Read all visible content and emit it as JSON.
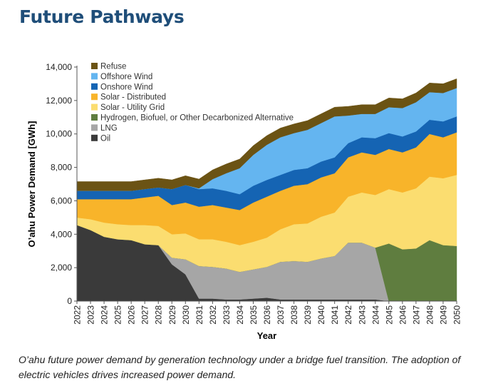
{
  "title": "Future Pathways",
  "caption": "O’ahu future power demand by generation technology under a bridge fuel transition. The adoption of electric vehicles drives increased power demand.",
  "chart_data": {
    "type": "area",
    "stacked": true,
    "xlabel": "Year",
    "ylabel": "O’ahu Power Demand [GWh]",
    "ylim": [
      0,
      14000
    ],
    "yticks": [
      0,
      2000,
      4000,
      6000,
      8000,
      10000,
      12000,
      14000
    ],
    "ytick_labels": [
      "0",
      "2,000",
      "4,000",
      "6,000",
      "8,000",
      "10,000",
      "12,000",
      "14,000"
    ],
    "grid": false,
    "legend_position": "top-left",
    "categories": [
      "2022",
      "2023",
      "2024",
      "2025",
      "2026",
      "2027",
      "2028",
      "2029",
      "2030",
      "2031",
      "2032",
      "2033",
      "2034",
      "2035",
      "2036",
      "2037",
      "2038",
      "2039",
      "2040",
      "2041",
      "2042",
      "2043",
      "2044",
      "2045",
      "2046",
      "2047",
      "2048",
      "2049",
      "2050"
    ],
    "series": [
      {
        "name": "Oil",
        "color": "#3a3a3a",
        "values": [
          4550,
          4250,
          3850,
          3700,
          3650,
          3400,
          3350,
          2200,
          1600,
          150,
          150,
          100,
          100,
          150,
          200,
          100,
          100,
          100,
          100,
          100,
          100,
          100,
          100,
          0,
          0,
          0,
          0,
          0,
          0
        ]
      },
      {
        "name": "LNG",
        "color": "#a6a6a6",
        "values": [
          0,
          0,
          0,
          0,
          0,
          0,
          0,
          400,
          900,
          1950,
          1900,
          1850,
          1650,
          1750,
          1850,
          2250,
          2300,
          2250,
          2450,
          2600,
          3400,
          3400,
          3100,
          0,
          0,
          0,
          0,
          0,
          0
        ]
      },
      {
        "name": "Hydrogen, Biofuel, or Other Decarbonized Alternative",
        "color": "#5f7d3f",
        "values": [
          0,
          0,
          0,
          0,
          0,
          0,
          0,
          0,
          0,
          0,
          0,
          0,
          0,
          0,
          0,
          0,
          0,
          0,
          0,
          0,
          0,
          0,
          0,
          3450,
          3100,
          3150,
          3650,
          3350,
          3300
        ]
      },
      {
        "name": "Solar - Utility Grid",
        "color": "#fbdd70",
        "values": [
          450,
          650,
          850,
          900,
          900,
          1150,
          1150,
          1400,
          1550,
          1600,
          1650,
          1600,
          1600,
          1650,
          1750,
          1950,
          2200,
          2300,
          2500,
          2600,
          2750,
          3000,
          3150,
          3250,
          3400,
          3600,
          3800,
          4000,
          4250
        ]
      },
      {
        "name": "Solar - Distributed",
        "color": "#f8b42a",
        "values": [
          1100,
          1200,
          1400,
          1500,
          1550,
          1650,
          1800,
          1750,
          1850,
          1950,
          2050,
          2050,
          2100,
          2350,
          2450,
          2300,
          2300,
          2350,
          2350,
          2350,
          2350,
          2400,
          2400,
          2400,
          2400,
          2450,
          2550,
          2450,
          2550
        ]
      },
      {
        "name": "Onshore Wind",
        "color": "#1564b3",
        "values": [
          500,
          500,
          500,
          500,
          500,
          500,
          500,
          950,
          1050,
          1050,
          1000,
          1000,
          950,
          1000,
          1000,
          950,
          950,
          950,
          950,
          950,
          850,
          900,
          1000,
          950,
          950,
          950,
          850,
          950,
          950
        ]
      },
      {
        "name": "Offshore Wind",
        "color": "#64b5f0",
        "values": [
          0,
          0,
          0,
          0,
          0,
          0,
          0,
          0,
          0,
          50,
          550,
          1050,
          1550,
          1850,
          2100,
          2250,
          2200,
          2300,
          2300,
          2450,
          1650,
          1400,
          1450,
          1550,
          1700,
          1750,
          1650,
          1700,
          1700
        ]
      },
      {
        "name": "Refuse",
        "color": "#6b5314",
        "values": [
          550,
          550,
          550,
          550,
          550,
          550,
          550,
          550,
          550,
          550,
          550,
          550,
          550,
          550,
          550,
          550,
          550,
          550,
          550,
          550,
          550,
          550,
          550,
          550,
          550,
          550,
          550,
          550,
          550
        ]
      }
    ]
  }
}
